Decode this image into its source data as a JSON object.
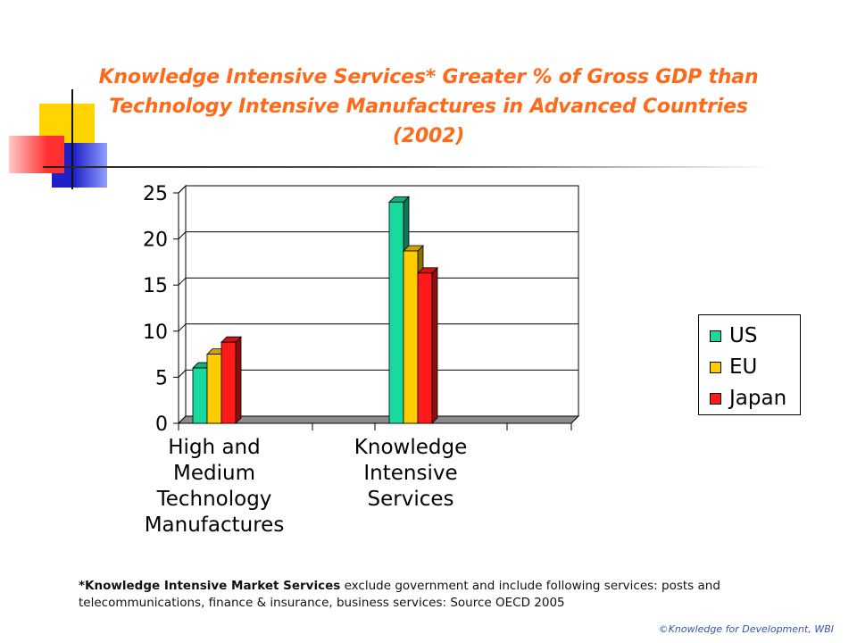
{
  "slide": {
    "title_lines": [
      "Knowledge Intensive Services* Greater % of Gross GDP than",
      "Technology Intensive Manufactures  in Advanced Countries",
      "(2002)"
    ],
    "footnote_bold": "*Knowledge Intensive Market Services",
    "footnote_text": " exclude government and include following services: posts and telecommunications, finance & insurance, business services: Source OECD 2005",
    "copyright": "©Knowledge for Development, WBI",
    "accent_colors": {
      "title": "#ff6a1a",
      "yellow": "#ffd700",
      "blue": "#2828c8",
      "red": "#ff2a2a"
    }
  },
  "chart_data": {
    "type": "bar",
    "categories": [
      "High and Medium Technology Manufactures",
      "Knowledge Intensive Services"
    ],
    "category_label_lines": [
      [
        "High and",
        "Medium",
        "Technology",
        "Manufactures"
      ],
      [
        "Knowledge",
        "Intensive",
        "Services"
      ]
    ],
    "series": [
      {
        "name": "US",
        "values": [
          6,
          24
        ],
        "color": "#19d9a0"
      },
      {
        "name": "EU",
        "values": [
          7.5,
          18.7
        ],
        "color": "#ffcc00"
      },
      {
        "name": "Japan",
        "values": [
          8.8,
          16.3
        ],
        "color": "#ff1a1a"
      }
    ],
    "y_ticks": [
      "0",
      "5",
      "10",
      "15",
      "20",
      "25"
    ],
    "ylim": [
      0,
      25
    ],
    "grid": true,
    "legend_position": "right",
    "style": "3d-columns"
  }
}
